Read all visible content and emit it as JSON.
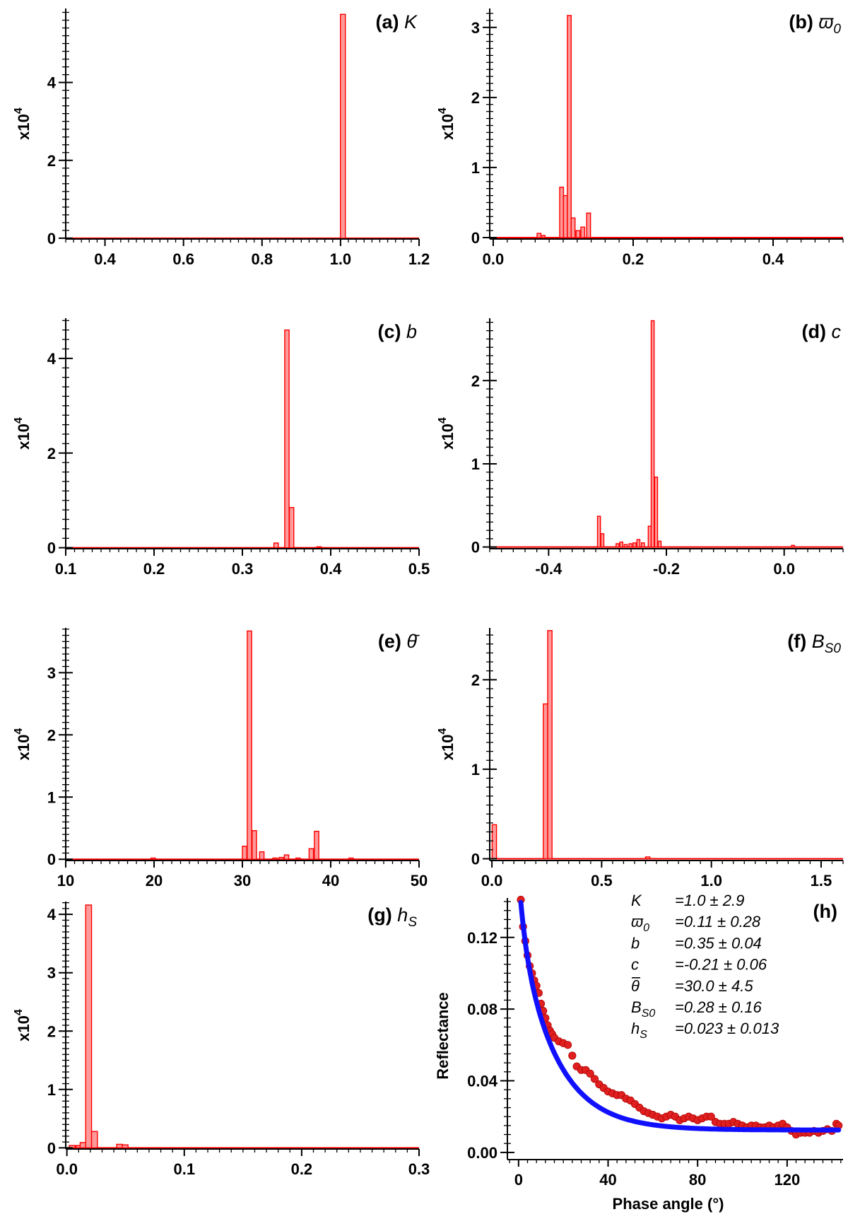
{
  "colors": {
    "bar_fill": "#ff9a9a",
    "bar_stroke": "#ff0000",
    "point": "#e02020",
    "point_stroke": "#b00000",
    "fit": "#1010ff",
    "axis": "#000000"
  },
  "ylabel_base": "x10",
  "ylabel_exp": "4",
  "chart_data": [
    {
      "id": "a",
      "type": "bar",
      "title_tag": "(a)",
      "title_sym": "K",
      "title_sub": "",
      "xlim": [
        0.3,
        1.2
      ],
      "xticks": [
        0.4,
        0.6,
        0.8,
        1.0,
        1.2
      ],
      "xticklabels": [
        "0.4",
        "0.6",
        "0.8",
        "1.0",
        "1.2"
      ],
      "xminor": 0.02,
      "ylim": [
        -0.02,
        5.9
      ],
      "yticks": [
        0,
        2,
        4
      ],
      "yticklabels": [
        "0",
        "2",
        "4"
      ],
      "yminor": 0.2,
      "bar_width": 0.0125,
      "bars": [
        [
          1.006,
          5.75
        ]
      ]
    },
    {
      "id": "b",
      "type": "bar",
      "title_tag": "(b)",
      "title_sym": "ϖ",
      "title_sub": "0",
      "xlim": [
        -0.005,
        0.5
      ],
      "xticks": [
        0.0,
        0.2,
        0.4
      ],
      "xticklabels": [
        "0.0",
        "0.2",
        "0.4"
      ],
      "xminor": 0.02,
      "ylim": [
        -0.02,
        3.27
      ],
      "yticks": [
        0,
        1,
        2,
        3
      ],
      "yticklabels": [
        "0",
        "1",
        "2",
        "3"
      ],
      "yminor": 0.1,
      "bar_width": 0.0055,
      "bars": [
        [
          0.0655,
          0.06
        ],
        [
          0.0713,
          0.03
        ],
        [
          0.0977,
          0.72
        ],
        [
          0.1032,
          0.6
        ],
        [
          0.1087,
          3.17
        ],
        [
          0.1142,
          0.28
        ],
        [
          0.1212,
          0.1
        ],
        [
          0.128,
          0.15
        ],
        [
          0.1363,
          0.35
        ]
      ]
    },
    {
      "id": "c",
      "type": "bar",
      "title_tag": "(c)",
      "title_sym": "b",
      "title_sub": "",
      "xlim": [
        0.1,
        0.5
      ],
      "xticks": [
        0.1,
        0.2,
        0.3,
        0.4,
        0.5
      ],
      "xticklabels": [
        "0.1",
        "0.2",
        "0.3",
        "0.4",
        "0.5"
      ],
      "xminor": 0.01,
      "ylim": [
        -0.02,
        4.85
      ],
      "yticks": [
        0,
        2,
        4
      ],
      "yticklabels": [
        "0",
        "2",
        "4"
      ],
      "yminor": 0.2,
      "bar_width": 0.005,
      "bars": [
        [
          0.3382,
          0.1
        ],
        [
          0.3504,
          4.6
        ],
        [
          0.3557,
          0.85
        ],
        [
          0.3868,
          0.02
        ]
      ]
    },
    {
      "id": "d",
      "type": "bar",
      "title_tag": "(d)",
      "title_sym": "c",
      "title_sub": "",
      "xlim": [
        -0.5,
        0.1
      ],
      "xticks": [
        -0.4,
        -0.2,
        0.0
      ],
      "xticklabels": [
        "-0.4",
        "-0.2",
        "0.0"
      ],
      "xminor": 0.02,
      "ylim": [
        -0.02,
        2.75
      ],
      "yticks": [
        0,
        1,
        2
      ],
      "yticklabels": [
        "0",
        "1",
        "2"
      ],
      "yminor": 0.1,
      "bar_width": 0.005,
      "bars": [
        [
          -0.3145,
          0.37
        ],
        [
          -0.3087,
          0.16
        ],
        [
          -0.283,
          0.04
        ],
        [
          -0.2765,
          0.06
        ],
        [
          -0.269,
          0.03
        ],
        [
          -0.261,
          0.04
        ],
        [
          -0.254,
          0.05
        ],
        [
          -0.2475,
          0.09
        ],
        [
          -0.2398,
          0.05
        ],
        [
          -0.2283,
          0.25
        ],
        [
          -0.2233,
          2.72
        ],
        [
          -0.2175,
          0.84
        ],
        [
          -0.2115,
          0.07
        ],
        [
          0.015,
          0.02
        ]
      ]
    },
    {
      "id": "e",
      "type": "bar",
      "title_tag": "(e)",
      "title_sym": "θ̄",
      "title_sub": "",
      "xlim": [
        10,
        50
      ],
      "xticks": [
        10,
        20,
        30,
        40,
        50
      ],
      "xticklabels": [
        "10",
        "20",
        "30",
        "40",
        "50"
      ],
      "xminor": 1,
      "ylim": [
        -0.02,
        3.72
      ],
      "yticks": [
        0,
        1,
        2,
        3
      ],
      "yticklabels": [
        "0",
        "1",
        "2",
        "3"
      ],
      "yminor": 0.1,
      "bar_width": 0.5,
      "bars": [
        [
          19.9,
          0.02
        ],
        [
          30.25,
          0.21
        ],
        [
          30.8,
          3.67
        ],
        [
          31.35,
          0.46
        ],
        [
          32.2,
          0.12
        ],
        [
          33.7,
          0.02
        ],
        [
          34.4,
          0.03
        ],
        [
          35.0,
          0.07
        ],
        [
          36.3,
          0.02
        ],
        [
          37.8,
          0.17
        ],
        [
          38.4,
          0.45
        ],
        [
          42.3,
          0.02
        ]
      ]
    },
    {
      "id": "f",
      "type": "bar",
      "title_tag": "(f)",
      "title_sym": "B",
      "title_sub": "S0",
      "xlim": [
        -0.01,
        1.6
      ],
      "xticks": [
        0.0,
        0.5,
        1.0,
        1.5
      ],
      "xticklabels": [
        "0.0",
        "0.5",
        "1.0",
        "1.5"
      ],
      "xminor": 0.05,
      "ylim": [
        -0.02,
        2.58
      ],
      "yticks": [
        0,
        1,
        2
      ],
      "yticklabels": [
        "0",
        "1",
        "2"
      ],
      "yminor": 0.1,
      "bar_width": 0.02,
      "bars": [
        [
          0.011,
          0.38
        ],
        [
          0.244,
          1.73
        ],
        [
          0.264,
          2.55
        ],
        [
          0.71,
          0.02
        ]
      ]
    },
    {
      "id": "g",
      "type": "bar",
      "title_tag": "(g)",
      "title_sym": "h",
      "title_sub": "S",
      "xlim": [
        -0.001,
        0.3
      ],
      "xticks": [
        0.0,
        0.1,
        0.2,
        0.3
      ],
      "xticklabels": [
        "0.0",
        "0.1",
        "0.2",
        "0.3"
      ],
      "xminor": 0.01,
      "ylim": [
        -0.02,
        4.22
      ],
      "yticks": [
        0,
        1,
        2,
        3,
        4
      ],
      "yticklabels": [
        "0",
        "1",
        "2",
        "3",
        "4"
      ],
      "yminor": 0.1,
      "bar_width": 0.005,
      "bars": [
        [
          0.0045,
          0.04
        ],
        [
          0.0103,
          0.04
        ],
        [
          0.0138,
          0.09
        ],
        [
          0.0185,
          4.16
        ],
        [
          0.0235,
          0.28
        ],
        [
          0.0449,
          0.06
        ],
        [
          0.0496,
          0.05
        ]
      ]
    },
    {
      "id": "h",
      "type": "scatter",
      "title": "(h)",
      "xlabel": "Phase angle (°)",
      "ylabel": "Reflectance",
      "xlim": [
        -5,
        145
      ],
      "xticks": [
        0,
        40,
        80,
        120
      ],
      "xticklabels": [
        "0",
        "40",
        "80",
        "120"
      ],
      "xminor": 4,
      "ylim": [
        -0.004,
        0.142
      ],
      "yticks": [
        0.0,
        0.04,
        0.08,
        0.12
      ],
      "yticklabels": [
        "0.00",
        "0.04",
        "0.08",
        "0.12"
      ],
      "yminor": 0.005,
      "observed": {
        "x": [
          1,
          2,
          3,
          4,
          5,
          6,
          7,
          8,
          9,
          10,
          11,
          12,
          13,
          14,
          15,
          16,
          18,
          20,
          22,
          24,
          26,
          28,
          30,
          32,
          34,
          36,
          38,
          40,
          42,
          44,
          46,
          48,
          50,
          52,
          54,
          56,
          58,
          60,
          62,
          64,
          66,
          68,
          70,
          72,
          74,
          76,
          78,
          80,
          82,
          84,
          86,
          88,
          90,
          92,
          94,
          96,
          98,
          100,
          102,
          104,
          106,
          108,
          110,
          112,
          114,
          116,
          118,
          120,
          122,
          124,
          126,
          128,
          130,
          132,
          134,
          136,
          138,
          140,
          142,
          143
        ],
        "y": [
          0.141,
          0.126,
          0.118,
          0.11,
          0.104,
          0.1,
          0.096,
          0.093,
          0.089,
          0.083,
          0.079,
          0.075,
          0.071,
          0.068,
          0.066,
          0.064,
          0.062,
          0.061,
          0.06,
          0.054,
          0.048,
          0.046,
          0.046,
          0.044,
          0.041,
          0.038,
          0.036,
          0.034,
          0.033,
          0.032,
          0.032,
          0.03,
          0.029,
          0.027,
          0.025,
          0.023,
          0.022,
          0.021,
          0.02,
          0.019,
          0.02,
          0.021,
          0.02,
          0.018,
          0.019,
          0.02,
          0.019,
          0.018,
          0.019,
          0.02,
          0.02,
          0.017,
          0.016,
          0.016,
          0.016,
          0.017,
          0.016,
          0.015,
          0.014,
          0.015,
          0.015,
          0.014,
          0.014,
          0.015,
          0.014,
          0.015,
          0.016,
          0.014,
          0.012,
          0.01,
          0.011,
          0.011,
          0.011,
          0.012,
          0.011,
          0.012,
          0.013,
          0.012,
          0.016,
          0.015
        ]
      },
      "fit_params": {
        "A": 0.107,
        "k": 0.061,
        "C": 0.0125,
        "x0": 1
      },
      "annotations": [
        {
          "sym": "K",
          "sub": "",
          "bar": false,
          "value": "=1.0 ± 2.9"
        },
        {
          "sym": "ϖ",
          "sub": "0",
          "bar": false,
          "value": "=0.11 ± 0.28"
        },
        {
          "sym": "b",
          "sub": "",
          "bar": false,
          "value": "=0.35 ± 0.04"
        },
        {
          "sym": "c",
          "sub": "",
          "bar": false,
          "value": "=-0.21 ± 0.06"
        },
        {
          "sym": "θ",
          "sub": "",
          "bar": true,
          "value": "=30.0 ± 4.5"
        },
        {
          "sym": "B",
          "sub": "S0",
          "bar": false,
          "value": "=0.28 ± 0.16"
        },
        {
          "sym": "h",
          "sub": "S",
          "bar": false,
          "value": "=0.023 ± 0.013"
        }
      ]
    }
  ]
}
